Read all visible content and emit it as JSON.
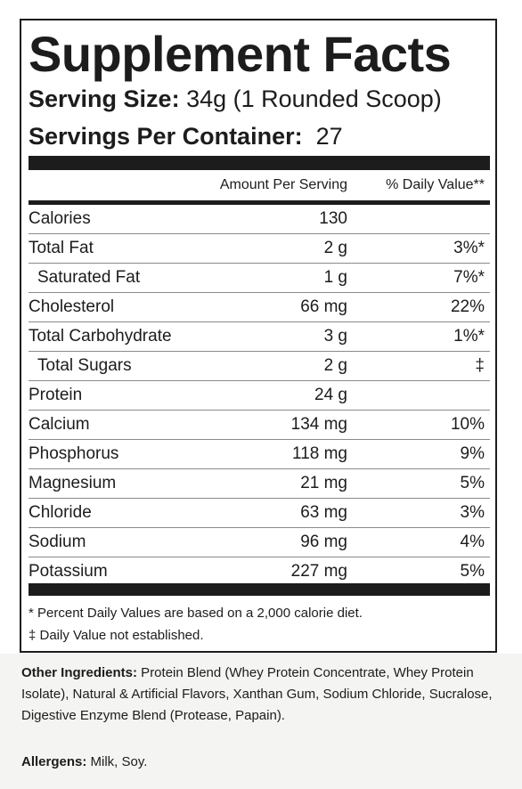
{
  "label": {
    "title": "Supplement Facts",
    "serving_size_label": "Serving Size:",
    "serving_size_value": " 34g (1 Rounded Scoop)",
    "servings_per_container_label": "Servings Per Container:",
    "servings_per_container_value": "  27",
    "column_amount": "Amount Per Serving",
    "column_dv": "% Daily Value**",
    "rows": [
      {
        "name": "Calories",
        "amount": "130",
        "dv": ""
      },
      {
        "name": "Total Fat",
        "amount": "2 g",
        "dv": "3%*"
      },
      {
        "name": "Saturated Fat",
        "amount": "1 g",
        "dv": "7%*"
      },
      {
        "name": "Cholesterol",
        "amount": "66 mg",
        "dv": "22%"
      },
      {
        "name": "Total Carbohydrate",
        "amount": "3 g",
        "dv": "1%*"
      },
      {
        "name": "Total Sugars",
        "amount": "2 g",
        "dv": "‡"
      },
      {
        "name": "Protein",
        "amount": "24 g",
        "dv": ""
      },
      {
        "name": "Calcium",
        "amount": "134 mg",
        "dv": "10%"
      },
      {
        "name": "Phosphorus",
        "amount": "118 mg",
        "dv": "9%"
      },
      {
        "name": "Magnesium",
        "amount": "21 mg",
        "dv": "5%"
      },
      {
        "name": "Chloride",
        "amount": "63 mg",
        "dv": "3%"
      },
      {
        "name": "Sodium",
        "amount": "96 mg",
        "dv": "4%"
      },
      {
        "name": "Potassium",
        "amount": "227 mg",
        "dv": "5%"
      }
    ],
    "footnote_1": "* Percent Daily Values are based on a 2,000 calorie diet.",
    "footnote_2": "‡ Daily Value not established."
  },
  "ingredients": {
    "label": "Other Ingredients:",
    "text": " Protein Blend (Whey Protein Concentrate, Whey Protein Isolate), Natural & Artificial Flavors, Xanthan Gum, Sodium Chloride, Sucralose, Digestive Enzyme Blend (Protease, Papain)."
  },
  "allergens": {
    "label": "Allergens:",
    "text": " Milk, Soy."
  }
}
